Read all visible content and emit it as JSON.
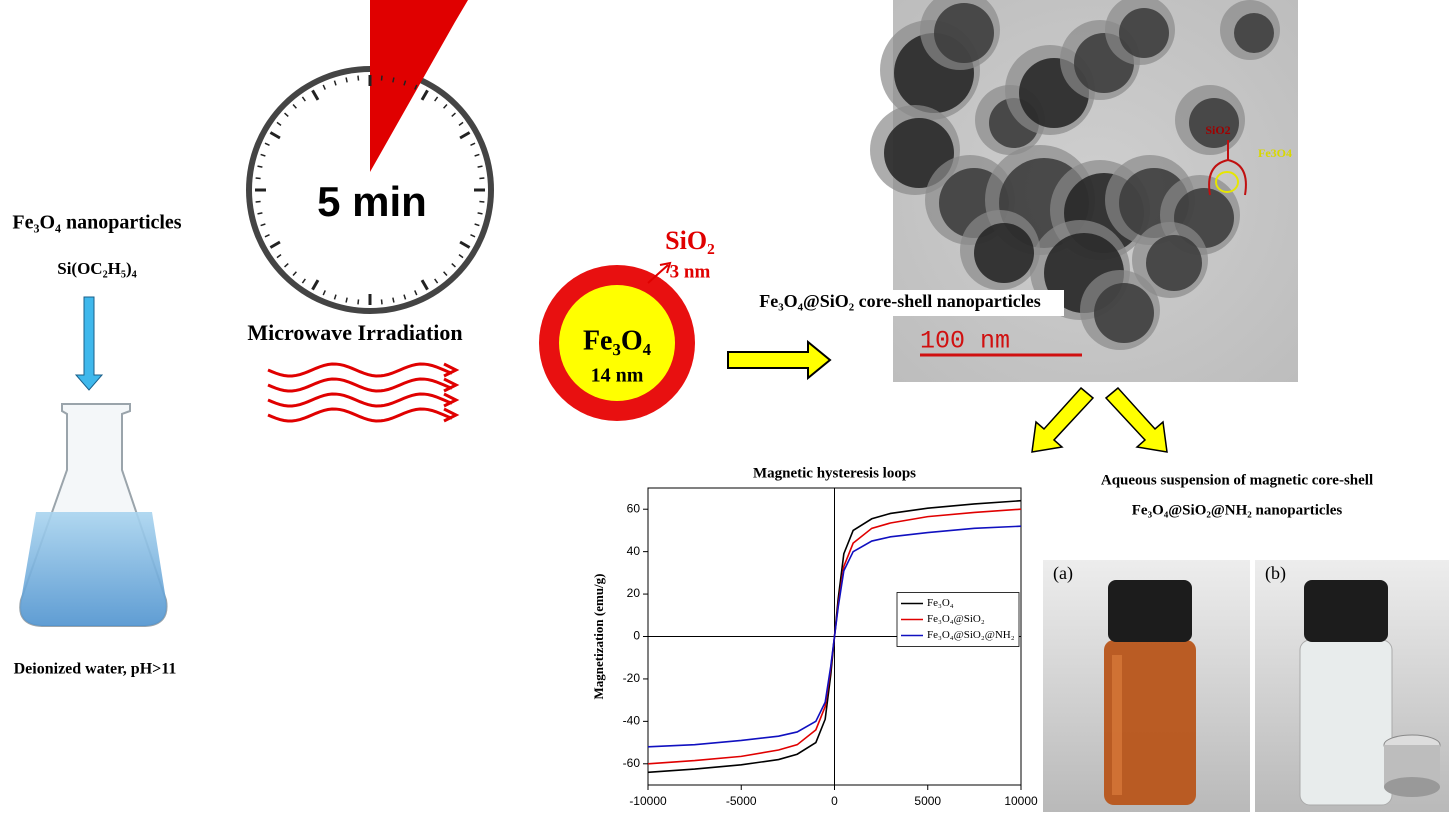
{
  "left": {
    "title": "Fe₃O₄ nanoparticles",
    "reagent": "Si(OC₂H₅)₄",
    "caption": "Deionized water, pH>11"
  },
  "timer": {
    "label": "5 min",
    "caption": "Microwave Irradiation"
  },
  "particle": {
    "shell": "SiO₂",
    "shell_size": "3 nm",
    "core": "Fe₃O₄",
    "core_size": "14 nm"
  },
  "tem": {
    "caption": "Fe₃O₄@SiO₂ core-shell nanoparticles",
    "scale": "100 nm",
    "shell_label": "SiO2",
    "core_label": "Fe3O4"
  },
  "suspension": {
    "title": [
      "Aqueous suspension of magnetic core-shell",
      "Fe₃O₄@SiO₂@NH₂ nanoparticles"
    ],
    "panels": [
      "(a)",
      "(b)"
    ]
  },
  "chart_data": {
    "type": "line",
    "title": "Magnetic hysteresis loops",
    "ylabel": "Magnetization (emu/g)",
    "x": [
      -10000,
      -7500,
      -5000,
      -3000,
      -2000,
      -1000,
      -500,
      -200,
      0,
      200,
      500,
      1000,
      2000,
      3000,
      5000,
      7500,
      10000
    ],
    "series": [
      {
        "name": "Fe₃O₄",
        "color": "#000000",
        "values": [
          -64,
          -62.5,
          -60.5,
          -58,
          -55.5,
          -50,
          -39,
          -18,
          0,
          18,
          39,
          50,
          55.5,
          58,
          60.5,
          62.5,
          64
        ]
      },
      {
        "name": "Fe₃O₄@SiO₂",
        "color": "#e00000",
        "values": [
          -60,
          -58.5,
          -56.5,
          -53.5,
          -51,
          -44,
          -33,
          -15,
          0,
          15,
          33,
          44,
          51,
          53.5,
          56.5,
          58.5,
          60
        ]
      },
      {
        "name": "Fe₃O₄@SiO₂@NH₂",
        "color": "#1010c0",
        "values": [
          -52,
          -51,
          -49,
          -47,
          -45,
          -40,
          -31,
          -14,
          0,
          14,
          31,
          40,
          45,
          47,
          49,
          51,
          52
        ]
      }
    ],
    "xlim": [
      -10000,
      10000
    ],
    "ylim": [
      -70,
      70
    ],
    "xticks": [
      -10000,
      -5000,
      0,
      5000,
      10000
    ],
    "yticks": [
      -60,
      -40,
      -20,
      0,
      20,
      40,
      60
    ],
    "legend": "right"
  }
}
